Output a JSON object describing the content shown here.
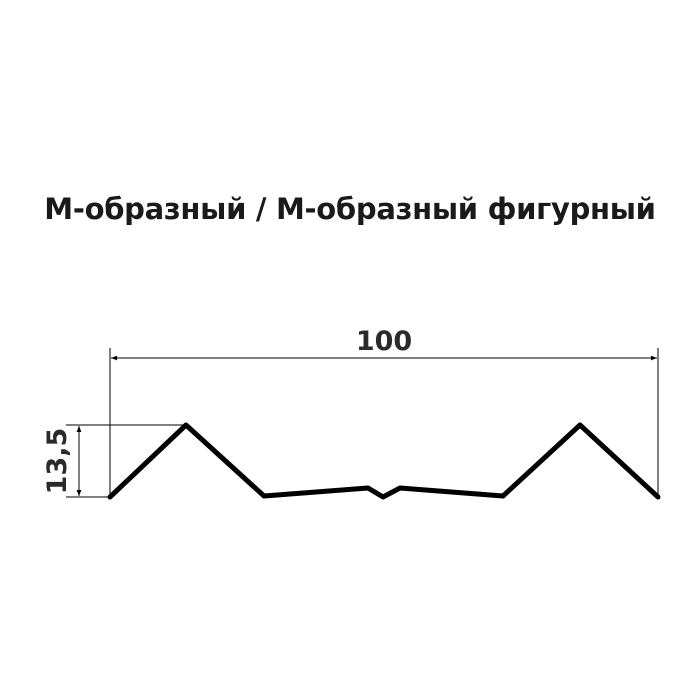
{
  "title": "М-образный / М-образный фигурный",
  "dimensions": {
    "width_label": "100",
    "height_label": "13,5"
  },
  "colors": {
    "profile": "#000000",
    "dimension_lines": "#000000",
    "text": "#1a1a1a"
  }
}
